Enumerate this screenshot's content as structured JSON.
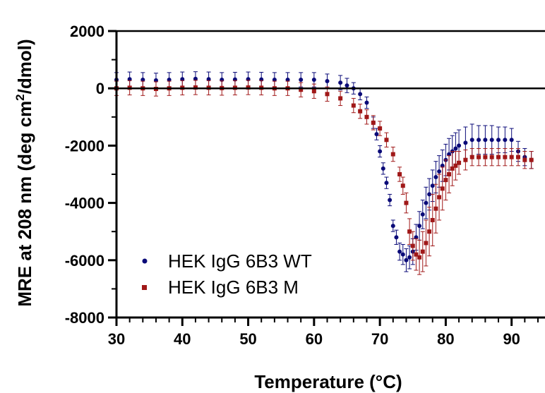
{
  "chart_data": {
    "type": "scatter",
    "title": "",
    "xlabel": "Temperature (°C)",
    "ylabel_prefix": "MRE at 208 nm (deg cm",
    "ylabel_sup": "2",
    "ylabel_suffix": "/dmol)",
    "xlim": [
      30,
      94
    ],
    "ylim": [
      -8000,
      2000
    ],
    "x_ticks": [
      "30",
      "40",
      "50",
      "60",
      "70",
      "80",
      "90"
    ],
    "y_ticks": [
      "2000",
      "0",
      "-2000",
      "-4000",
      "-6000",
      "-8000"
    ],
    "reference_line_y": 0,
    "legend_position": "lower-left",
    "series": [
      {
        "name": "HEK IgG 6B3 WT",
        "color": "#0a0a78",
        "marker": "circle",
        "x": [
          30,
          32,
          34,
          36,
          38,
          40,
          42,
          44,
          46,
          48,
          50,
          52,
          54,
          56,
          58,
          60,
          62,
          64,
          65,
          66,
          67,
          68,
          69,
          69.5,
          70,
          70.5,
          71,
          71.5,
          72,
          72.5,
          73,
          73.5,
          74,
          74.5,
          75,
          75.5,
          76,
          76.5,
          77,
          77.5,
          78,
          78.5,
          79,
          79.5,
          80,
          80.5,
          81,
          81.5,
          82,
          83,
          84,
          85,
          86,
          87,
          88,
          89,
          90,
          91,
          92,
          93
        ],
        "y": [
          300,
          320,
          300,
          280,
          300,
          320,
          330,
          320,
          300,
          310,
          320,
          310,
          300,
          300,
          300,
          300,
          250,
          200,
          100,
          0,
          -200,
          -500,
          -1200,
          -1600,
          -2200,
          -2800,
          -3300,
          -3900,
          -4800,
          -5200,
          -5700,
          -5800,
          -6000,
          -5900,
          -5700,
          -5200,
          -4800,
          -4400,
          -4000,
          -3700,
          -3400,
          -3100,
          -2900,
          -2700,
          -2500,
          -2300,
          -2200,
          -2100,
          -2000,
          -1900,
          -1800,
          -1800,
          -1800,
          -1800,
          -1800,
          -1800,
          -1800,
          -2200,
          -2400,
          -2500
        ],
        "error": [
          250,
          250,
          250,
          250,
          250,
          250,
          250,
          250,
          250,
          250,
          250,
          250,
          250,
          250,
          250,
          250,
          250,
          250,
          250,
          200,
          200,
          200,
          200,
          200,
          200,
          200,
          200,
          200,
          200,
          250,
          300,
          350,
          400,
          400,
          450,
          450,
          500,
          500,
          550,
          550,
          550,
          550,
          550,
          550,
          550,
          550,
          550,
          550,
          550,
          550,
          550,
          500,
          500,
          500,
          450,
          450,
          400,
          350,
          300,
          300
        ]
      },
      {
        "name": "HEK IgG 6B3 M",
        "color": "#a01818",
        "marker": "square",
        "x": [
          30,
          32,
          34,
          36,
          38,
          40,
          42,
          44,
          46,
          48,
          50,
          52,
          54,
          56,
          58,
          60,
          62,
          64,
          66,
          67,
          68,
          69,
          70,
          71,
          72,
          73,
          73.5,
          74,
          74.5,
          75,
          75.5,
          76,
          76.5,
          77,
          77.5,
          78,
          78.5,
          79,
          79.5,
          80,
          80.5,
          81,
          81.5,
          82,
          83,
          84,
          85,
          86,
          87,
          88,
          89,
          90,
          91,
          92,
          93
        ],
        "y": [
          0,
          20,
          0,
          -20,
          0,
          20,
          30,
          20,
          10,
          20,
          30,
          20,
          0,
          0,
          -50,
          -100,
          -200,
          -350,
          -600,
          -800,
          -1000,
          -1200,
          -1400,
          -1800,
          -2300,
          -3000,
          -3400,
          -4000,
          -5000,
          -5500,
          -5800,
          -5900,
          -5700,
          -5400,
          -5000,
          -4600,
          -4200,
          -3800,
          -3500,
          -3200,
          -3000,
          -2800,
          -2700,
          -2600,
          -2500,
          -2400,
          -2400,
          -2400,
          -2400,
          -2400,
          -2400,
          -2400,
          -2400,
          -2500,
          -2500
        ],
        "error": [
          250,
          250,
          250,
          250,
          250,
          250,
          250,
          250,
          250,
          250,
          250,
          250,
          250,
          250,
          250,
          250,
          250,
          250,
          250,
          250,
          250,
          250,
          250,
          250,
          250,
          250,
          300,
          350,
          450,
          500,
          550,
          600,
          700,
          800,
          850,
          900,
          850,
          800,
          750,
          700,
          650,
          600,
          500,
          400,
          350,
          300,
          300,
          300,
          300,
          300,
          300,
          300,
          300,
          300,
          300
        ]
      }
    ]
  }
}
